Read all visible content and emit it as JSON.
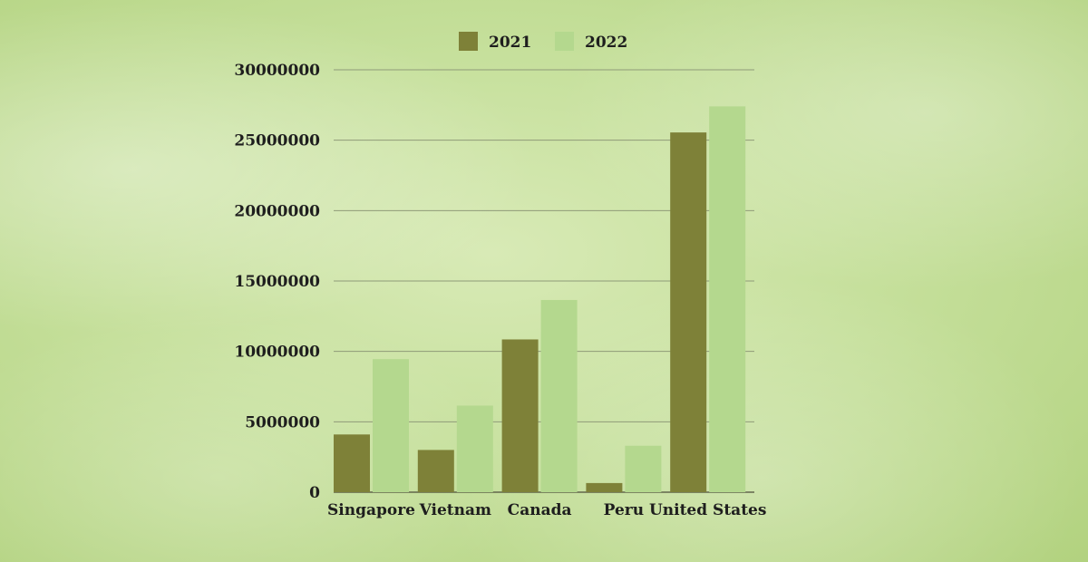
{
  "chart_data": {
    "type": "bar",
    "categories": [
      "Singapore",
      "Vietnam",
      "Canada",
      "Peru",
      "United States"
    ],
    "series": [
      {
        "name": "2021",
        "values": [
          4100000,
          3000000,
          10850000,
          650000,
          25550000
        ],
        "color": "#7e8138"
      },
      {
        "name": "2022",
        "values": [
          9450000,
          6150000,
          13650000,
          3300000,
          27400000
        ],
        "color": "#b4d88e"
      }
    ],
    "ylim": [
      0,
      30000000
    ],
    "yticks": [
      "0",
      "5000000",
      "10000000",
      "15000000",
      "20000000",
      "25000000",
      "30000000"
    ],
    "grid": true,
    "legend": "top-center"
  }
}
